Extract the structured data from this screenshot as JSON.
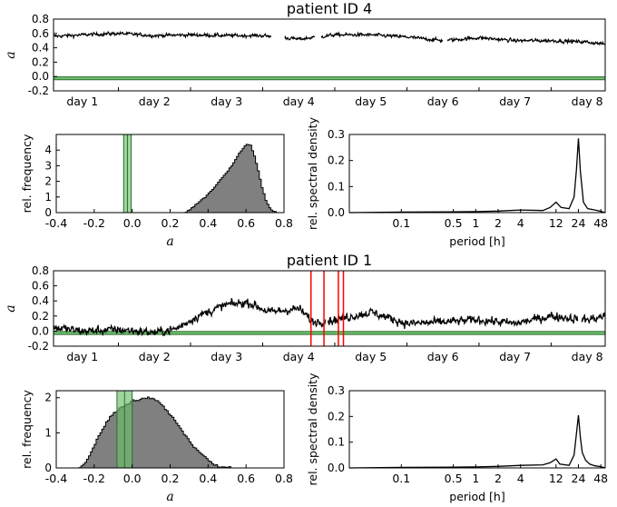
{
  "colors": {
    "trace": "#000000",
    "band_fill": "#6dbf6d",
    "band_edge": "#2e6b2e",
    "hist_fill": "#808080",
    "spike": "#ff0000"
  },
  "chart_data": [
    {
      "panel": "patient-4-timeseries",
      "type": "line",
      "title": "patient ID 4",
      "ylabel": "a",
      "ylim": [
        -0.2,
        0.8
      ],
      "yticks": [
        "-0.2",
        "0.0",
        "0.2",
        "0.4",
        "0.6",
        "0.8"
      ],
      "xlim_days": [
        0.6,
        8.25
      ],
      "xtick_labels": [
        "day 1",
        "day 2",
        "day 3",
        "day 4",
        "day 5",
        "day 6",
        "day 7",
        "day 8"
      ],
      "reference_band": [
        -0.045,
        -0.005
      ],
      "gaps_days": [
        [
          3.62,
          3.8
        ],
        [
          4.23,
          4.31
        ],
        [
          6.0,
          6.06
        ]
      ],
      "series_keypoints": [
        [
          0.6,
          0.56
        ],
        [
          1.0,
          0.58
        ],
        [
          1.5,
          0.6
        ],
        [
          2.0,
          0.57
        ],
        [
          2.5,
          0.58
        ],
        [
          3.0,
          0.57
        ],
        [
          3.5,
          0.57
        ],
        [
          4.0,
          0.52
        ],
        [
          4.5,
          0.58
        ],
        [
          5.0,
          0.58
        ],
        [
          5.5,
          0.55
        ],
        [
          6.0,
          0.5
        ],
        [
          6.5,
          0.54
        ],
        [
          7.0,
          0.5
        ],
        [
          7.5,
          0.5
        ],
        [
          8.0,
          0.48
        ],
        [
          8.25,
          0.45
        ]
      ]
    },
    {
      "panel": "patient-4-histogram",
      "type": "bar",
      "xlabel": "a",
      "ylabel": "rel. frequency",
      "xlim": [
        -0.4,
        0.8
      ],
      "ylim": [
        0,
        5
      ],
      "xticks": [
        "-0.4",
        "-0.2",
        "0.0",
        "0.2",
        "0.4",
        "0.6",
        "0.8"
      ],
      "yticks": [
        "0",
        "1",
        "2",
        "3",
        "4"
      ],
      "reference_band": [
        -0.045,
        -0.005
      ],
      "bin_width": 0.01,
      "bins": [
        [
          0.28,
          0.05
        ],
        [
          0.3,
          0.2
        ],
        [
          0.32,
          0.4
        ],
        [
          0.34,
          0.6
        ],
        [
          0.36,
          0.8
        ],
        [
          0.38,
          1.0
        ],
        [
          0.4,
          1.25
        ],
        [
          0.42,
          1.5
        ],
        [
          0.44,
          1.8
        ],
        [
          0.46,
          2.1
        ],
        [
          0.48,
          2.4
        ],
        [
          0.5,
          2.7
        ],
        [
          0.52,
          3.0
        ],
        [
          0.54,
          3.4
        ],
        [
          0.56,
          3.8
        ],
        [
          0.58,
          4.1
        ],
        [
          0.6,
          4.4
        ],
        [
          0.62,
          4.3
        ],
        [
          0.64,
          3.6
        ],
        [
          0.66,
          2.7
        ],
        [
          0.68,
          1.6
        ],
        [
          0.7,
          0.8
        ],
        [
          0.72,
          0.3
        ],
        [
          0.74,
          0.1
        ],
        [
          0.76,
          0.0
        ]
      ]
    },
    {
      "panel": "patient-4-spectrum",
      "type": "line",
      "xlabel": "period [h]",
      "ylabel": "rel. spectral density",
      "ylim": [
        0,
        0.3
      ],
      "yticks": [
        "0.0",
        "0.1",
        "0.2",
        "0.3"
      ],
      "xtick_values": [
        0.1,
        0.5,
        1,
        2,
        4,
        12,
        24,
        48
      ],
      "xtick_labels": [
        "0.1",
        "0.5",
        "1",
        "2",
        "4",
        "12",
        "24",
        "48"
      ],
      "x_log_range_h": [
        0.02,
        55
      ],
      "points": [
        [
          0.02,
          0.0
        ],
        [
          0.1,
          0.002
        ],
        [
          0.5,
          0.003
        ],
        [
          1,
          0.004
        ],
        [
          2,
          0.006
        ],
        [
          4,
          0.01
        ],
        [
          8,
          0.008
        ],
        [
          10,
          0.02
        ],
        [
          12,
          0.04
        ],
        [
          14,
          0.02
        ],
        [
          18,
          0.015
        ],
        [
          21,
          0.06
        ],
        [
          22.5,
          0.16
        ],
        [
          24,
          0.285
        ],
        [
          25.5,
          0.16
        ],
        [
          28,
          0.04
        ],
        [
          32,
          0.015
        ],
        [
          40,
          0.01
        ],
        [
          48,
          0.005
        ],
        [
          55,
          0.0
        ]
      ]
    },
    {
      "panel": "patient-1-timeseries",
      "type": "line",
      "title": "patient ID 1",
      "ylabel": "a",
      "ylim": [
        -0.2,
        0.8
      ],
      "yticks": [
        "-0.2",
        "0.0",
        "0.2",
        "0.4",
        "0.6",
        "0.8"
      ],
      "xlim_days": [
        0.6,
        8.25
      ],
      "xtick_labels": [
        "day 1",
        "day 2",
        "day 3",
        "day 4",
        "day 5",
        "day 6",
        "day 7",
        "day 8"
      ],
      "reference_band": [
        -0.045,
        -0.005
      ],
      "event_markers_days": [
        4.17,
        4.35,
        4.55,
        4.62
      ],
      "gaps_days": [
        [
          4.37,
          4.4
        ],
        [
          7.87,
          7.92
        ]
      ],
      "series_keypoints": [
        [
          0.6,
          0.05
        ],
        [
          1.0,
          0.0
        ],
        [
          1.5,
          0.02
        ],
        [
          2.0,
          -0.02
        ],
        [
          2.3,
          0.03
        ],
        [
          2.6,
          0.2
        ],
        [
          3.0,
          0.35
        ],
        [
          3.3,
          0.38
        ],
        [
          3.6,
          0.25
        ],
        [
          4.0,
          0.3
        ],
        [
          4.2,
          0.12
        ],
        [
          4.5,
          0.15
        ],
        [
          5.0,
          0.25
        ],
        [
          5.5,
          0.1
        ],
        [
          6.0,
          0.12
        ],
        [
          6.5,
          0.15
        ],
        [
          7.0,
          0.1
        ],
        [
          7.5,
          0.2
        ],
        [
          8.0,
          0.15
        ],
        [
          8.25,
          0.2
        ]
      ]
    },
    {
      "panel": "patient-1-histogram",
      "type": "bar",
      "xlabel": "a",
      "ylabel": "rel. frequency",
      "xlim": [
        -0.4,
        0.8
      ],
      "ylim": [
        0,
        2.2
      ],
      "xticks": [
        "-0.4",
        "-0.2",
        "0.0",
        "0.2",
        "0.4",
        "0.6",
        "0.8"
      ],
      "yticks": [
        "0",
        "1",
        "2"
      ],
      "reference_band": [
        -0.08,
        0.0
      ],
      "bin_width": 0.01,
      "bins": [
        [
          -0.28,
          0.02
        ],
        [
          -0.26,
          0.1
        ],
        [
          -0.24,
          0.25
        ],
        [
          -0.22,
          0.45
        ],
        [
          -0.2,
          0.7
        ],
        [
          -0.18,
          0.9
        ],
        [
          -0.16,
          1.1
        ],
        [
          -0.14,
          1.3
        ],
        [
          -0.12,
          1.45
        ],
        [
          -0.1,
          1.55
        ],
        [
          -0.08,
          1.65
        ],
        [
          -0.06,
          1.75
        ],
        [
          -0.04,
          1.8
        ],
        [
          -0.02,
          1.85
        ],
        [
          0.0,
          1.9
        ],
        [
          0.02,
          1.92
        ],
        [
          0.04,
          1.95
        ],
        [
          0.06,
          1.97
        ],
        [
          0.08,
          2.0
        ],
        [
          0.1,
          1.97
        ],
        [
          0.12,
          1.93
        ],
        [
          0.14,
          1.85
        ],
        [
          0.16,
          1.75
        ],
        [
          0.18,
          1.62
        ],
        [
          0.2,
          1.5
        ],
        [
          0.22,
          1.35
        ],
        [
          0.24,
          1.2
        ],
        [
          0.26,
          1.05
        ],
        [
          0.28,
          0.9
        ],
        [
          0.3,
          0.75
        ],
        [
          0.32,
          0.62
        ],
        [
          0.34,
          0.5
        ],
        [
          0.36,
          0.4
        ],
        [
          0.38,
          0.3
        ],
        [
          0.4,
          0.2
        ],
        [
          0.42,
          0.12
        ],
        [
          0.44,
          0.07
        ],
        [
          0.46,
          0.03
        ],
        [
          0.5,
          0.01
        ]
      ]
    },
    {
      "panel": "patient-1-spectrum",
      "type": "line",
      "xlabel": "period [h]",
      "ylabel": "rel. spectral density",
      "ylim": [
        0,
        0.3
      ],
      "yticks": [
        "0.0",
        "0.1",
        "0.2",
        "0.3"
      ],
      "xtick_values": [
        0.1,
        0.5,
        1,
        2,
        4,
        12,
        24,
        48
      ],
      "xtick_labels": [
        "0.1",
        "0.5",
        "1",
        "2",
        "4",
        "12",
        "24",
        "48"
      ],
      "x_log_range_h": [
        0.02,
        55
      ],
      "points": [
        [
          0.02,
          0.0
        ],
        [
          0.1,
          0.002
        ],
        [
          0.5,
          0.003
        ],
        [
          1,
          0.004
        ],
        [
          2,
          0.006
        ],
        [
          4,
          0.01
        ],
        [
          8,
          0.012
        ],
        [
          10,
          0.02
        ],
        [
          12,
          0.035
        ],
        [
          13.5,
          0.015
        ],
        [
          18,
          0.01
        ],
        [
          21,
          0.05
        ],
        [
          22.5,
          0.13
        ],
        [
          24,
          0.205
        ],
        [
          25.5,
          0.12
        ],
        [
          27,
          0.06
        ],
        [
          30,
          0.03
        ],
        [
          34,
          0.015
        ],
        [
          40,
          0.008
        ],
        [
          48,
          0.005
        ],
        [
          55,
          0.0
        ]
      ]
    }
  ]
}
